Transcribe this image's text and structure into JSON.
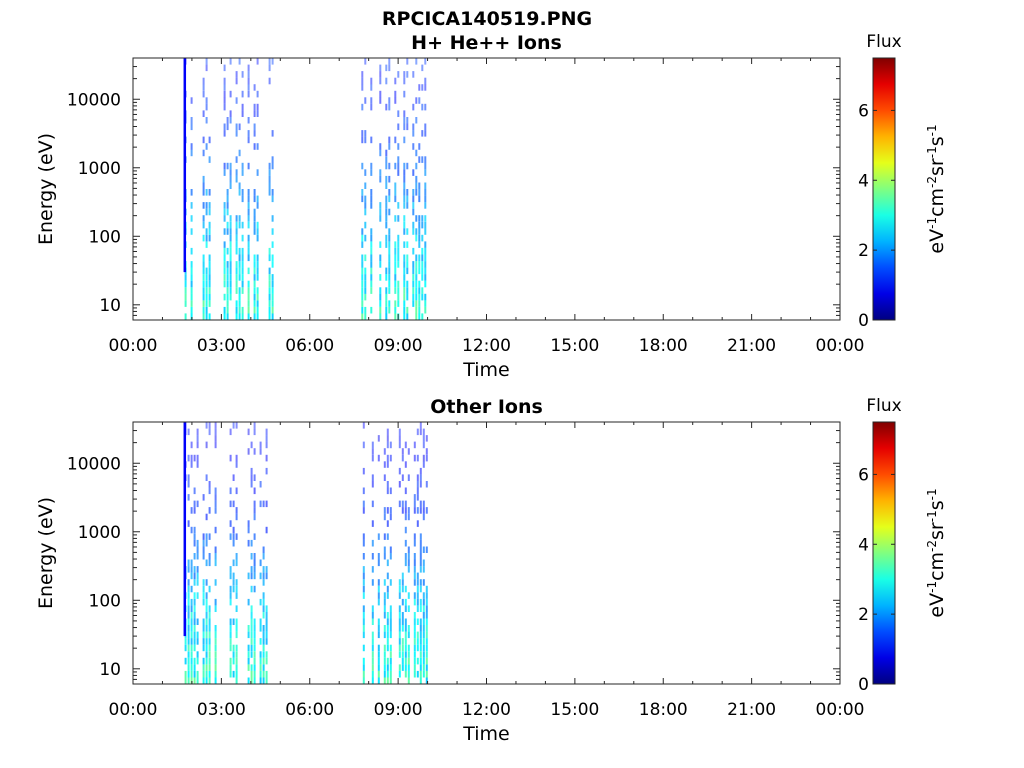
{
  "figure_title": "RPCICA140519.PNG",
  "chart_data": [
    {
      "type": "heatmap",
      "title": "H+ He++ Ions",
      "xlabel": "Time",
      "ylabel": "Energy (eV)",
      "x_ticks": [
        "00:00",
        "03:00",
        "06:00",
        "09:00",
        "12:00",
        "15:00",
        "18:00",
        "21:00",
        "00:00"
      ],
      "xlim_hours": [
        0,
        24
      ],
      "y_ticks": [
        "10",
        "100",
        "1000",
        "10000"
      ],
      "y_scale": "log",
      "ylim": [
        6,
        40000
      ],
      "grid": false,
      "colorbar": {
        "title": "Flux",
        "label": "eV^-1 cm^-2 sr^-1 s^-1",
        "ticks": [
          "0",
          "2",
          "4",
          "6"
        ],
        "range": [
          0,
          7.5
        ],
        "colormap": "jet"
      },
      "data_intervals_hours": [
        [
          1.75,
          4.75
        ],
        [
          7.75,
          10.0
        ]
      ],
      "spike_hour": 1.75,
      "typical_flux_by_energy": [
        {
          "energy": 10,
          "flux": 3.0
        },
        {
          "energy": 100,
          "flux": 2.4
        },
        {
          "energy": 1000,
          "flux": 1.6
        },
        {
          "energy": 10000,
          "flux": 1.2
        }
      ]
    },
    {
      "type": "heatmap",
      "title": "Other Ions",
      "xlabel": "Time",
      "ylabel": "Energy (eV)",
      "x_ticks": [
        "00:00",
        "03:00",
        "06:00",
        "09:00",
        "12:00",
        "15:00",
        "18:00",
        "21:00",
        "00:00"
      ],
      "xlim_hours": [
        0,
        24
      ],
      "y_ticks": [
        "10",
        "100",
        "1000",
        "10000"
      ],
      "y_scale": "log",
      "ylim": [
        6,
        40000
      ],
      "grid": false,
      "colorbar": {
        "title": "Flux",
        "label": "eV^-1 cm^-2 sr^-1 s^-1",
        "ticks": [
          "0",
          "2",
          "4",
          "6"
        ],
        "range": [
          0,
          7.5
        ],
        "colormap": "jet"
      },
      "data_intervals_hours": [
        [
          1.75,
          4.6
        ],
        [
          7.8,
          10.0
        ]
      ],
      "spike_hour": 1.75,
      "typical_flux_by_energy": [
        {
          "energy": 10,
          "flux": 3.0
        },
        {
          "energy": 100,
          "flux": 2.4
        },
        {
          "energy": 1000,
          "flux": 1.4
        },
        {
          "energy": 10000,
          "flux": 1.0
        }
      ]
    }
  ]
}
